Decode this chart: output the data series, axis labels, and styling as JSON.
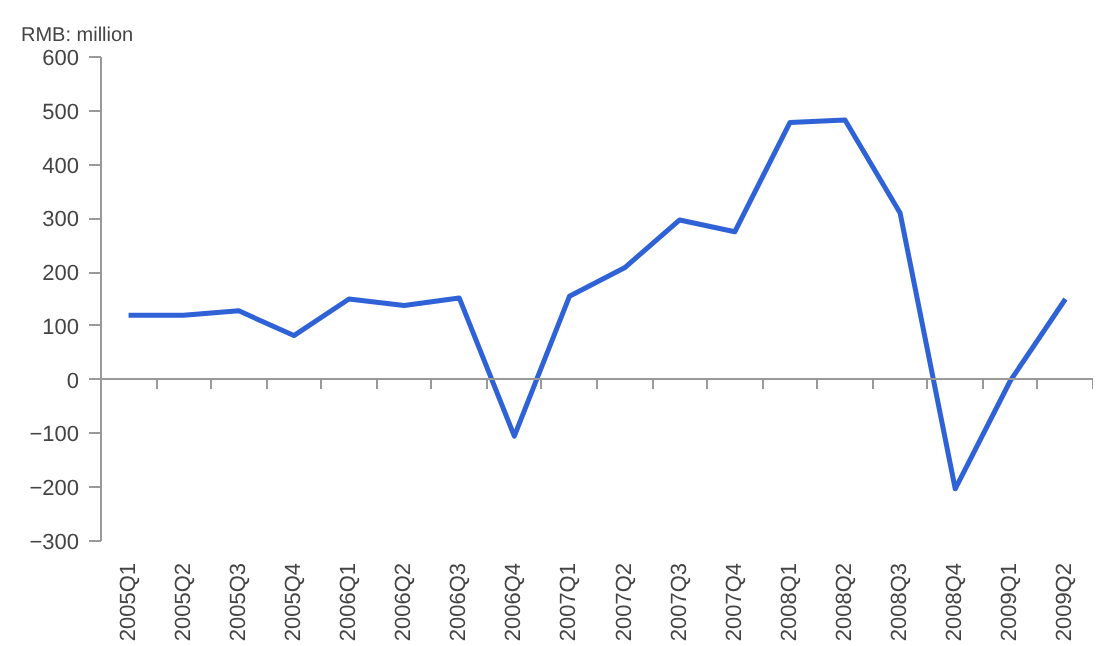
{
  "chart_data": {
    "type": "line",
    "ylabel": "RMB: million",
    "categories": [
      "2005Q1",
      "2005Q2",
      "2005Q3",
      "2005Q4",
      "2006Q1",
      "2006Q2",
      "2006Q3",
      "2006Q4",
      "2007Q1",
      "2007Q2",
      "2007Q3",
      "2007Q4",
      "2008Q1",
      "2008Q2",
      "2008Q3",
      "2008Q4",
      "2009Q1",
      "2009Q2"
    ],
    "series": [
      {
        "color": "#2e62d6",
        "values": [
          120,
          120,
          128,
          82,
          150,
          138,
          152,
          -105,
          155,
          208,
          297,
          275,
          478,
          483,
          310,
          -203,
          -2,
          150
        ]
      }
    ],
    "ylim": [
      -300,
      600
    ],
    "yticks": [
      -300,
      -200,
      -100,
      0,
      100,
      200,
      300,
      400,
      500,
      600
    ],
    "marker": "none",
    "line_style": "solid"
  }
}
